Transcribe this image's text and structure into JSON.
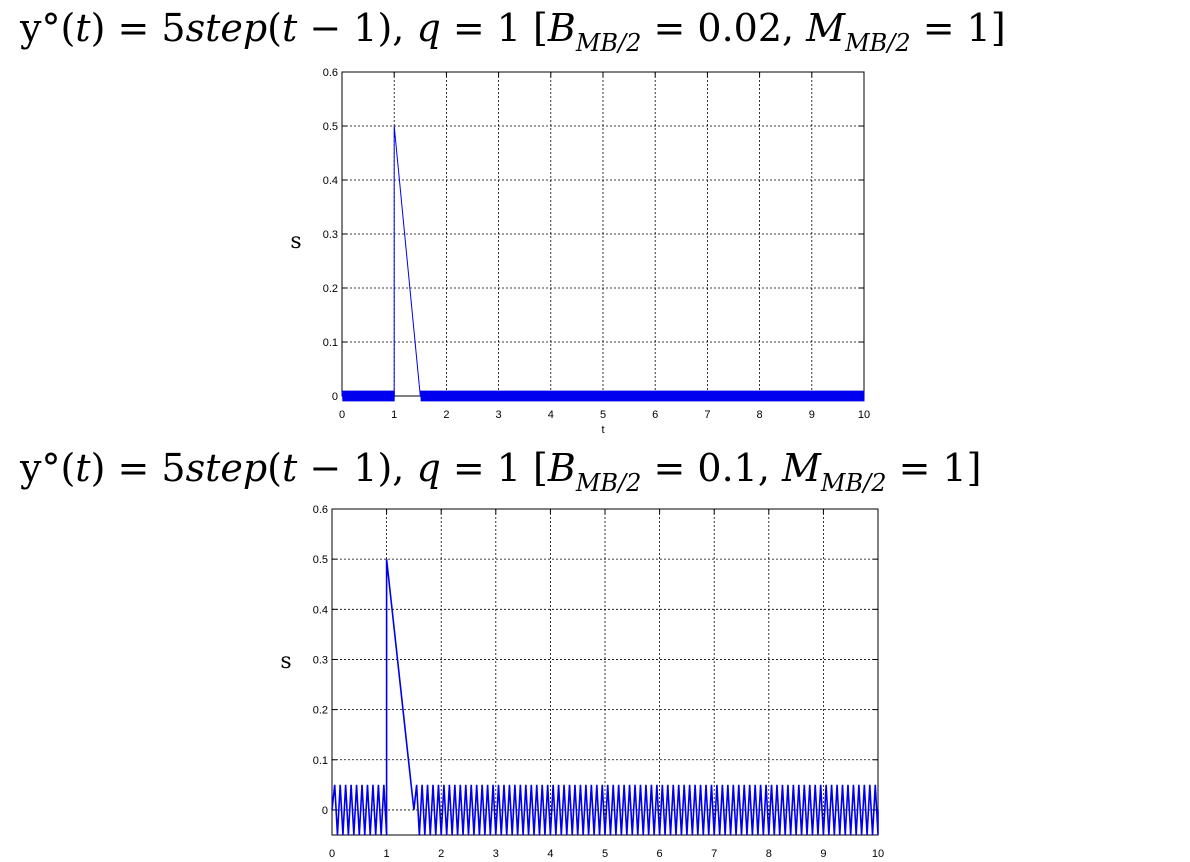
{
  "titles": [
    {
      "prefix": "y°(",
      "t1": "t",
      "mid": ") = 5",
      "step": "step",
      "open": "(",
      "t2": "t",
      "after": " − 1), ",
      "q": "q",
      "qval": " = 1 [",
      "B": "B",
      "Bsub": "MB/2",
      "Bval": " = 0.02, ",
      "M": "M",
      "Msub": "MB/2",
      "Mval": " = 1]"
    },
    {
      "prefix": "y°(",
      "t1": "t",
      "mid": ") = 5",
      "step": "step",
      "open": "(",
      "t2": "t",
      "after": " − 1), ",
      "q": "q",
      "qval": " = 1 [",
      "B": "B",
      "Bsub": "MB/2",
      "Bval": " = 0.1, ",
      "M": "M",
      "Msub": "MB/2",
      "Mval": " = 1]"
    }
  ],
  "colors": {
    "line": "#0000ee",
    "grid": "#000000",
    "frame": "#000000"
  },
  "chart_data": [
    {
      "type": "line",
      "title": "",
      "xlabel": "t",
      "ylabel": "s",
      "xlim": [
        0,
        10
      ],
      "ylim": [
        0,
        0.6
      ],
      "xticks": [
        "0",
        "1",
        "2",
        "3",
        "4",
        "5",
        "6",
        "7",
        "8",
        "9",
        "10"
      ],
      "yticks": [
        "0",
        "0.1",
        "0.2",
        "0.3",
        "0.4",
        "0.5",
        "0.6"
      ],
      "grid": true,
      "chatter_amplitude": 0.01,
      "chatter_cycles_per_unit": 30,
      "series": [
        {
          "values_description_free": true,
          "x": [
            0,
            1.0,
            1.0,
            1.5,
            10
          ],
          "y": [
            0,
            0,
            0.5,
            0,
            0
          ],
          "chatter_ranges": [
            [
              0,
              1.0
            ],
            [
              1.5,
              10
            ]
          ]
        }
      ]
    },
    {
      "type": "line",
      "title": "",
      "xlabel": "",
      "ylabel": "s",
      "xlim": [
        0,
        10
      ],
      "ylim": [
        -0.05,
        0.6
      ],
      "xticks": [
        "0",
        "1",
        "2",
        "3",
        "4",
        "5",
        "6",
        "7",
        "8",
        "9",
        "10"
      ],
      "yticks": [
        "0",
        "0.1",
        "0.2",
        "0.3",
        "0.4",
        "0.5",
        "0.6"
      ],
      "grid": true,
      "chatter_amplitude": 0.05,
      "chatter_cycles_per_unit": 5,
      "series": [
        {
          "x": [
            0,
            1.0,
            1.0,
            1.5,
            10
          ],
          "y": [
            0,
            0,
            0.5,
            0,
            0
          ],
          "chatter_ranges": [
            [
              0,
              1.0
            ],
            [
              1.5,
              10
            ]
          ]
        }
      ]
    }
  ]
}
